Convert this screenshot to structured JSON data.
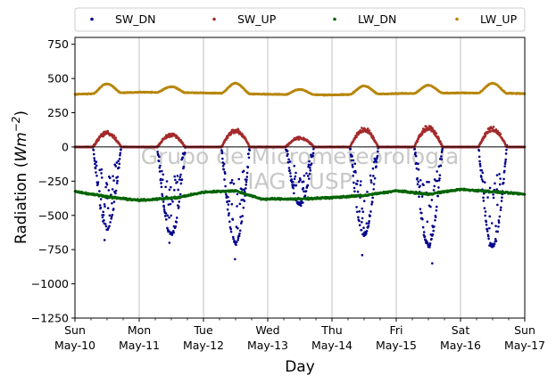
{
  "chart_data": {
    "type": "scatter",
    "title": "",
    "xlabel": "Day",
    "ylabel_main": "Radiation (",
    "ylabel_unit": "Wm",
    "ylabel_exp": "−2",
    "ylabel_close": ")",
    "ylim": [
      -1250,
      800
    ],
    "xlim": [
      0,
      7
    ],
    "yticks": [
      {
        "value": 750,
        "label": "750"
      },
      {
        "value": 500,
        "label": "500"
      },
      {
        "value": 250,
        "label": "250"
      },
      {
        "value": 0,
        "label": "0"
      },
      {
        "value": -250,
        "label": "−250"
      },
      {
        "value": -500,
        "label": "−500"
      },
      {
        "value": -750,
        "label": "−750"
      },
      {
        "value": -1000,
        "label": "−1000"
      },
      {
        "value": -1250,
        "label": "−1250"
      }
    ],
    "xticks": [
      {
        "day": 0,
        "weekday": "Sun",
        "date": "May-10"
      },
      {
        "day": 1,
        "weekday": "Mon",
        "date": "May-11"
      },
      {
        "day": 2,
        "weekday": "Tue",
        "date": "May-12"
      },
      {
        "day": 3,
        "weekday": "Wed",
        "date": "May-13"
      },
      {
        "day": 4,
        "weekday": "Thu",
        "date": "May-14"
      },
      {
        "day": 5,
        "weekday": "Fri",
        "date": "May-15"
      },
      {
        "day": 6,
        "weekday": "Sat",
        "date": "May-16"
      },
      {
        "day": 7,
        "weekday": "Sun",
        "date": "May-17"
      }
    ],
    "grid": "vertical",
    "zero_line": true,
    "legend_position": "top",
    "watermark_lines": [
      "Grupo de Micrometeorologia",
      "IAG - USP"
    ],
    "series": [
      {
        "name": "SW_DN",
        "color": "#00008b",
        "daily_peaks": [
          -590,
          -640,
          -700,
          -420,
          -640,
          -720,
          -730
        ],
        "outliers": [
          [
            0.46,
            -680
          ],
          [
            1.47,
            -700
          ],
          [
            2.49,
            -820
          ],
          [
            3.44,
            -390
          ],
          [
            4.47,
            -790
          ],
          [
            5.56,
            -850
          ],
          [
            6.45,
            -720
          ]
        ]
      },
      {
        "name": "SW_UP",
        "color": "#a52a2a",
        "daily_peaks": [
          110,
          95,
          130,
          70,
          135,
          150,
          140
        ]
      },
      {
        "name": "LW_DN",
        "color": "#006400",
        "levels": [
          [
            0,
            -325
          ],
          [
            0.6,
            -370
          ],
          [
            1.0,
            -390
          ],
          [
            1.6,
            -370
          ],
          [
            2.0,
            -330
          ],
          [
            2.5,
            -320
          ],
          [
            2.9,
            -380
          ],
          [
            3.5,
            -380
          ],
          [
            4.0,
            -370
          ],
          [
            4.5,
            -355
          ],
          [
            5.0,
            -320
          ],
          [
            5.5,
            -345
          ],
          [
            6.0,
            -310
          ],
          [
            6.6,
            -330
          ],
          [
            7.0,
            -345
          ]
        ]
      },
      {
        "name": "LW_UP",
        "color": "#b8860b",
        "base_levels": [
          [
            0,
            385
          ],
          [
            1,
            400
          ],
          [
            2,
            395
          ],
          [
            3,
            385
          ],
          [
            4,
            380
          ],
          [
            5,
            390
          ],
          [
            6,
            395
          ],
          [
            7,
            390
          ]
        ],
        "daily_peaks": [
          460,
          440,
          465,
          420,
          445,
          450,
          465
        ]
      }
    ]
  }
}
